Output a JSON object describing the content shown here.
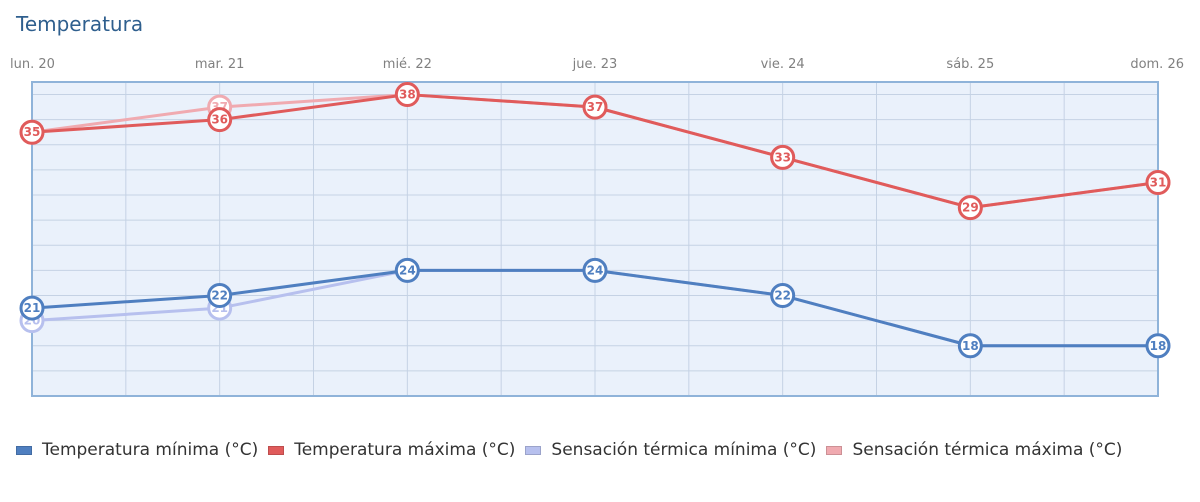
{
  "chart_data": {
    "type": "line",
    "title": "Temperatura",
    "categories": [
      "lun. 20",
      "mar. 21",
      "mié. 22",
      "jue. 23",
      "vie. 24",
      "sáb. 25",
      "dom. 26"
    ],
    "ylim": [
      14,
      39
    ],
    "grid": true,
    "legend": "bottom",
    "series": [
      {
        "name": "Temperatura mínima (°C)",
        "color": "#4f7fc0",
        "values": [
          21,
          22,
          24,
          24,
          22,
          18,
          18
        ]
      },
      {
        "name": "Temperatura máxima (°C)",
        "color": "#e05b5b",
        "values": [
          35,
          36,
          38,
          37,
          33,
          29,
          31
        ]
      },
      {
        "name": "Sensación térmica mínima (°C)",
        "color": "#b7c0ee",
        "values": [
          20,
          21,
          24,
          24,
          22,
          18,
          18
        ]
      },
      {
        "name": "Sensación térmica máxima (°C)",
        "color": "#f0aab0",
        "values": [
          35,
          37,
          38,
          37,
          33,
          29,
          31
        ]
      }
    ]
  }
}
